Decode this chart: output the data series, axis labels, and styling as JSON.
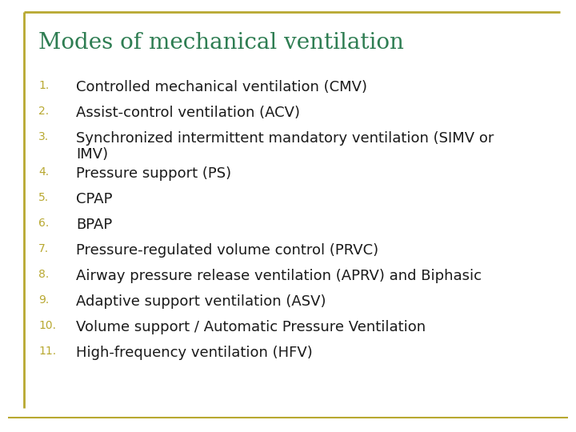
{
  "title": "Modes of mechanical ventilation",
  "title_color": "#2E7D52",
  "title_fontsize": 20,
  "background_color": "#FFFFFF",
  "border_color": "#B8A830",
  "number_color": "#B8A830",
  "number_fontsize": 10,
  "text_color": "#1A1A1A",
  "text_fontsize": 13,
  "items": [
    {
      "num": "1.",
      "text": "Controlled mechanical ventilation (CMV)"
    },
    {
      "num": "2.",
      "text": "Assist-control ventilation (ACV)"
    },
    {
      "num": "3.",
      "text": "Synchronized intermittent mandatory ventilation (SIMV or\nIMV)"
    },
    {
      "num": "4.",
      "text": "Pressure support (PS)"
    },
    {
      "num": "5.",
      "text": "CPAP"
    },
    {
      "num": "6.",
      "text": "BPAP"
    },
    {
      "num": "7.",
      "text": "Pressure-regulated volume control (PRVC)"
    },
    {
      "num": "8.",
      "text": "Airway pressure release ventilation (APRV) and Biphasic"
    },
    {
      "num": "9.",
      "text": "Adaptive support ventilation (ASV)"
    },
    {
      "num": "10.",
      "text": "Volume support / Automatic Pressure Ventilation"
    },
    {
      "num": "11.",
      "text": "High-frequency ventilation (HFV)"
    }
  ],
  "item3_wrapped": true
}
